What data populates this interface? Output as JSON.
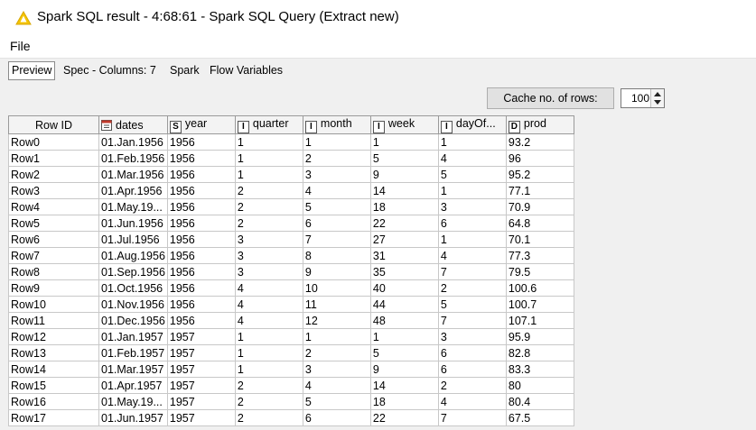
{
  "window": {
    "title": "Spark SQL result - 4:68:61 - Spark SQL Query (Extract new)"
  },
  "menu": {
    "file": "File"
  },
  "tabs": [
    {
      "label": "Preview",
      "active": true
    },
    {
      "label": "Spec - Columns: 7",
      "active": false
    },
    {
      "label": "Spark",
      "active": false
    },
    {
      "label": "Flow Variables",
      "active": false
    }
  ],
  "toolbar": {
    "cache_label": "Cache no. of rows:",
    "cache_value": "100"
  },
  "table": {
    "columns": [
      {
        "label": "Row ID",
        "type": ""
      },
      {
        "label": "dates",
        "type": "date-icon"
      },
      {
        "label": "year",
        "type": "S"
      },
      {
        "label": "quarter",
        "type": "I"
      },
      {
        "label": "month",
        "type": "I"
      },
      {
        "label": "week",
        "type": "I"
      },
      {
        "label": "dayOf...",
        "type": "I"
      },
      {
        "label": "prod",
        "type": "D"
      }
    ],
    "rows": [
      [
        "Row0",
        "01.Jan.1956",
        "1956",
        "1",
        "1",
        "1",
        "1",
        "93.2"
      ],
      [
        "Row1",
        "01.Feb.1956",
        "1956",
        "1",
        "2",
        "5",
        "4",
        "96"
      ],
      [
        "Row2",
        "01.Mar.1956",
        "1956",
        "1",
        "3",
        "9",
        "5",
        "95.2"
      ],
      [
        "Row3",
        "01.Apr.1956",
        "1956",
        "2",
        "4",
        "14",
        "1",
        "77.1"
      ],
      [
        "Row4",
        "01.May.19...",
        "1956",
        "2",
        "5",
        "18",
        "3",
        "70.9"
      ],
      [
        "Row5",
        "01.Jun.1956",
        "1956",
        "2",
        "6",
        "22",
        "6",
        "64.8"
      ],
      [
        "Row6",
        "01.Jul.1956",
        "1956",
        "3",
        "7",
        "27",
        "1",
        "70.1"
      ],
      [
        "Row7",
        "01.Aug.1956",
        "1956",
        "3",
        "8",
        "31",
        "4",
        "77.3"
      ],
      [
        "Row8",
        "01.Sep.1956",
        "1956",
        "3",
        "9",
        "35",
        "7",
        "79.5"
      ],
      [
        "Row9",
        "01.Oct.1956",
        "1956",
        "4",
        "10",
        "40",
        "2",
        "100.6"
      ],
      [
        "Row10",
        "01.Nov.1956",
        "1956",
        "4",
        "11",
        "44",
        "5",
        "100.7"
      ],
      [
        "Row11",
        "01.Dec.1956",
        "1956",
        "4",
        "12",
        "48",
        "7",
        "107.1"
      ],
      [
        "Row12",
        "01.Jan.1957",
        "1957",
        "1",
        "1",
        "1",
        "3",
        "95.9"
      ],
      [
        "Row13",
        "01.Feb.1957",
        "1957",
        "1",
        "2",
        "5",
        "6",
        "82.8"
      ],
      [
        "Row14",
        "01.Mar.1957",
        "1957",
        "1",
        "3",
        "9",
        "6",
        "83.3"
      ],
      [
        "Row15",
        "01.Apr.1957",
        "1957",
        "2",
        "4",
        "14",
        "2",
        "80"
      ],
      [
        "Row16",
        "01.May.19...",
        "1957",
        "2",
        "5",
        "18",
        "4",
        "80.4"
      ],
      [
        "Row17",
        "01.Jun.1957",
        "1957",
        "2",
        "6",
        "22",
        "7",
        "67.5"
      ]
    ]
  },
  "colors": {
    "accent_warning": "#f5c400",
    "row_marker": "#3a3a3a",
    "panel_bg": "#f0f0f0"
  }
}
